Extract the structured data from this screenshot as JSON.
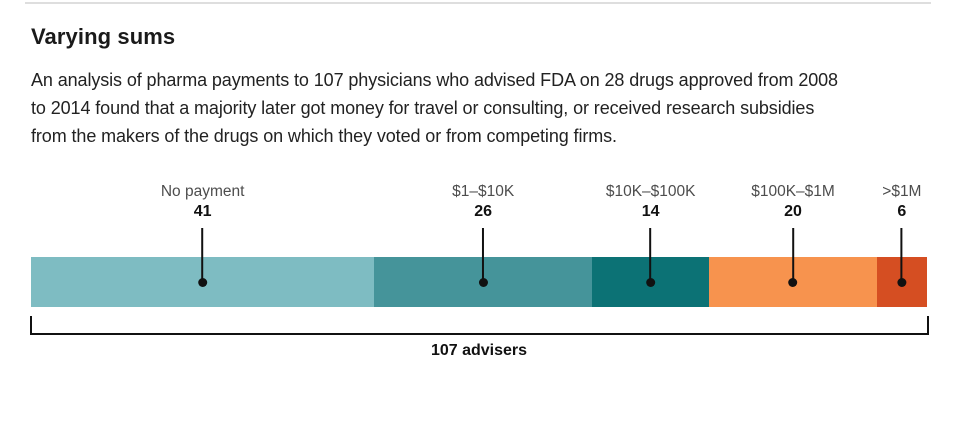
{
  "header": {
    "title": "Varying sums",
    "subtitle_lines": [
      "An analysis of pharma payments to 107 physicians who advised FDA on 28 drugs approved from 2008",
      "to 2014 found that a majority later got money for travel or consulting, or received research subsidies",
      "from the makers of the drugs on which they voted or from competing firms."
    ]
  },
  "chart_data": {
    "type": "bar",
    "variant": "horizontal-stacked-proportional",
    "title": "Varying sums",
    "categories": [
      "No payment",
      "$1–$10K",
      "$10K–$100K",
      "$100K–$1M",
      ">$1M"
    ],
    "values": [
      41,
      26,
      14,
      20,
      6
    ],
    "total": 107,
    "total_label": "107 advisers",
    "colors": [
      "#7EBCC2",
      "#45949A",
      "#0C7275",
      "#F7934E",
      "#D54E22"
    ],
    "grid": false,
    "legend_position": "labels-above-with-pointer-dots",
    "accent_pointer_color": "#111111"
  }
}
